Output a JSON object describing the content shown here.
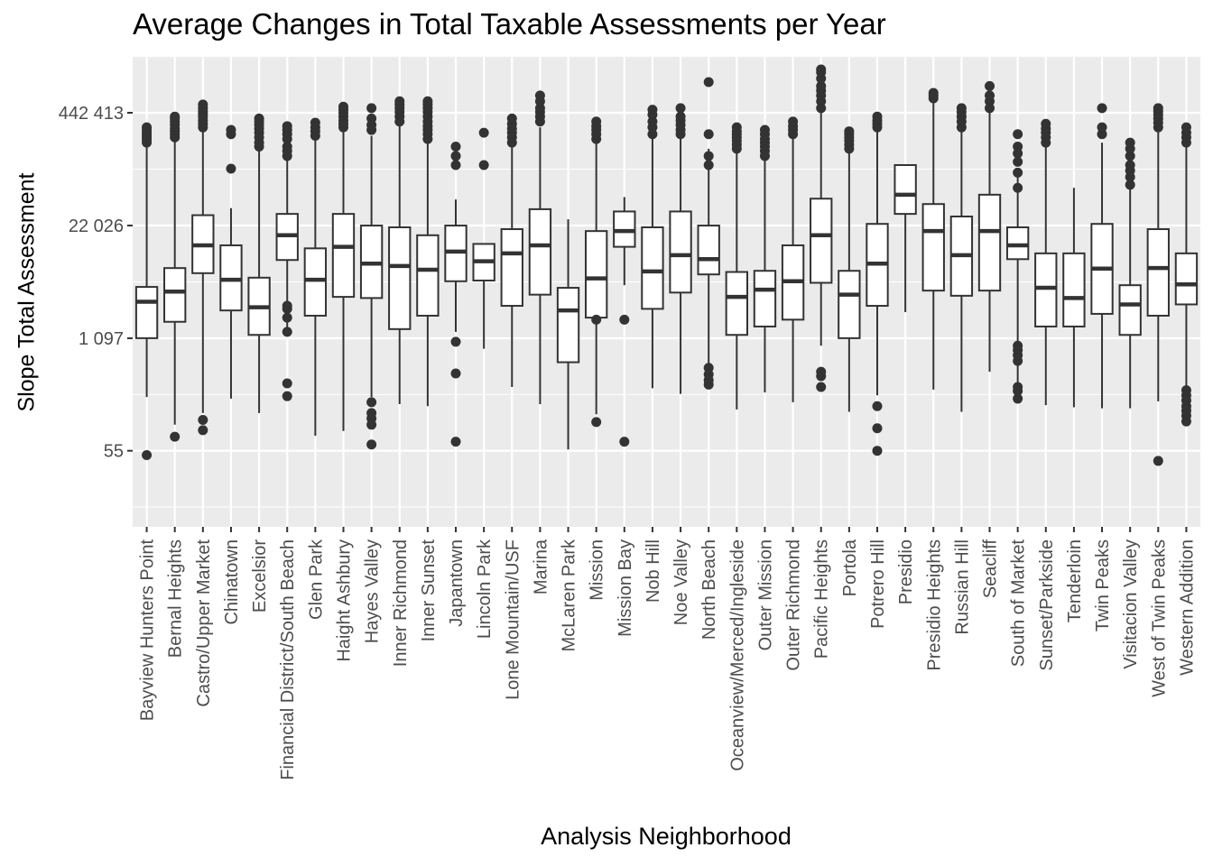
{
  "chart_data": {
    "type": "boxplot",
    "title": "Average Changes in Total Taxable Assessments per Year",
    "xlabel": "Analysis Neighborhood",
    "ylabel": "Slope Total Assessment",
    "y_scale": "log",
    "ylim": [
      2,
      30000000
    ],
    "y_ticks": [
      {
        "value": 55,
        "label": "55"
      },
      {
        "value": 1097,
        "label": "1 097"
      },
      {
        "value": 22026,
        "label": "22 026"
      },
      {
        "value": 442413,
        "label": "442 413"
      }
    ],
    "grid": true,
    "categories": [
      "Bayview Hunters Point",
      "Bernal Heights",
      "Castro/Upper Market",
      "Chinatown",
      "Excelsior",
      "Financial District/South Beach",
      "Glen Park",
      "Haight Ashbury",
      "Hayes Valley",
      "Inner Richmond",
      "Inner Sunset",
      "Japantown",
      "Lincoln Park",
      "Lone Mountain/USF",
      "Marina",
      "McLaren Park",
      "Mission",
      "Mission Bay",
      "Nob Hill",
      "Noe Valley",
      "North Beach",
      "Oceanview/Merced/Ingleside",
      "Outer Mission",
      "Outer Richmond",
      "Pacific Heights",
      "Portola",
      "Potrero Hill",
      "Presidio",
      "Presidio Heights",
      "Russian Hill",
      "Seacliff",
      "South of Market",
      "Sunset/Parkside",
      "Tenderloin",
      "Twin Peaks",
      "Visitacion Valley",
      "West of Twin Peaks",
      "Western Addition"
    ],
    "boxes": [
      {
        "min": 230,
        "q1": 1100,
        "median": 2900,
        "q3": 4300,
        "max": 190000,
        "outliers": [
          49,
          200000,
          215000,
          230000,
          245000,
          260000,
          280000,
          300000
        ]
      },
      {
        "min": 110,
        "q1": 1700,
        "median": 3800,
        "q3": 7100,
        "max": 300000,
        "outliers": [
          80,
          230000,
          250000,
          270000,
          290000,
          320000,
          350000,
          380000,
          400000
        ]
      },
      {
        "min": 150,
        "q1": 6200,
        "median": 13000,
        "q3": 29000,
        "max": 400000,
        "outliers": [
          95,
          125,
          300000,
          330000,
          360000,
          400000,
          430000,
          460000,
          500000,
          550000
        ]
      },
      {
        "min": 220,
        "q1": 2300,
        "median": 5200,
        "q3": 13000,
        "max": 35000,
        "outliers": [
          100000,
          250000,
          280000
        ]
      },
      {
        "min": 150,
        "q1": 1200,
        "median": 2500,
        "q3": 5500,
        "max": 170000,
        "outliers": [
          180000,
          200000,
          230000,
          260000,
          290000,
          320000,
          350000,
          380000
        ]
      },
      {
        "min": 1400,
        "q1": 8800,
        "median": 17000,
        "q3": 30000,
        "max": 280000,
        "outliers": [
          1300,
          1900,
          2400,
          2600,
          330,
          235,
          140000,
          160000,
          180000,
          220000,
          250000,
          280000,
          310000
        ]
      },
      {
        "min": 82,
        "q1": 2000,
        "median": 5200,
        "q3": 12000,
        "max": 300000,
        "outliers": [
          240000,
          270000,
          300000,
          340000
        ]
      },
      {
        "min": 93,
        "q1": 3300,
        "median": 12500,
        "q3": 30000,
        "max": 400000,
        "outliers": [
          300000,
          330000,
          360000,
          400000,
          440000,
          480000,
          520000
        ]
      },
      {
        "min": 230,
        "q1": 3200,
        "median": 8000,
        "q3": 22000,
        "max": 240000,
        "outliers": [
          200,
          150,
          130,
          110,
          65,
          280000,
          320000,
          380000,
          500000
        ]
      },
      {
        "min": 190,
        "q1": 1400,
        "median": 7500,
        "q3": 21000,
        "max": 420000,
        "outliers": [
          350000,
          400000,
          450000,
          500000,
          550000,
          600000
        ]
      },
      {
        "min": 180,
        "q1": 2000,
        "median": 6800,
        "q3": 17000,
        "max": 330000,
        "outliers": [
          220000,
          250000,
          280000,
          310000,
          350000,
          400000,
          450000,
          500000,
          550000,
          600000
        ]
      },
      {
        "min": 1300,
        "q1": 5000,
        "median": 11000,
        "q3": 22000,
        "max": 44000,
        "outliers": [
          1000,
          430,
          70,
          110000,
          140000,
          180000
        ]
      },
      {
        "min": 830,
        "q1": 5100,
        "median": 8500,
        "q3": 13500,
        "max": 13500,
        "outliers": [
          110000,
          260000
        ]
      },
      {
        "min": 300,
        "q1": 2600,
        "median": 10500,
        "q3": 20000,
        "max": 190000,
        "outliers": [
          200000,
          230000,
          260000,
          290000,
          330000,
          380000
        ]
      },
      {
        "min": 190,
        "q1": 3500,
        "median": 13000,
        "q3": 34000,
        "max": 300000,
        "outliers": [
          350000,
          400000,
          450000,
          500000,
          600000,
          700000
        ]
      },
      {
        "min": 57,
        "q1": 580,
        "median": 2300,
        "q3": 4200,
        "max": 26000,
        "outliers": []
      },
      {
        "min": 145,
        "q1": 1900,
        "median": 5400,
        "q3": 19000,
        "max": 300000,
        "outliers": [
          118,
          1800,
          220000,
          250000,
          280000,
          310000,
          350000
        ]
      },
      {
        "min": 4500,
        "q1": 12500,
        "median": 19000,
        "q3": 32000,
        "max": 47000,
        "outliers": [
          1800,
          70
        ]
      },
      {
        "min": 290,
        "q1": 2400,
        "median": 6500,
        "q3": 21000,
        "max": 300000,
        "outliers": [
          250000,
          300000,
          350000,
          420000,
          480000
        ]
      },
      {
        "min": 250,
        "q1": 3700,
        "median": 10000,
        "q3": 32000,
        "max": 300000,
        "outliers": [
          250000,
          280000,
          320000,
          360000,
          400000,
          500000
        ]
      },
      {
        "min": 520,
        "q1": 6000,
        "median": 9000,
        "q3": 22000,
        "max": 170000,
        "outliers": [
          500,
          420,
          360,
          320,
          110000,
          140000,
          250000,
          1000000
        ]
      },
      {
        "min": 165,
        "q1": 1200,
        "median": 3300,
        "q3": 6400,
        "max": 160000,
        "outliers": [
          170000,
          190000,
          210000,
          230000,
          250000,
          270000,
          300000
        ]
      },
      {
        "min": 260,
        "q1": 1500,
        "median": 4000,
        "q3": 6600,
        "max": 180000,
        "outliers": [
          140000,
          160000,
          180000,
          200000,
          220000,
          250000,
          280000
        ]
      },
      {
        "min": 200,
        "q1": 1800,
        "median": 5000,
        "q3": 13000,
        "max": 300000,
        "outliers": [
          250000,
          280000,
          310000,
          350000
        ]
      },
      {
        "min": 900,
        "q1": 4800,
        "median": 17000,
        "q3": 45000,
        "max": 1200000,
        "outliers": [
          300,
          400,
          450,
          500000,
          600000,
          700000,
          800000,
          900000,
          1100000,
          1300000,
          1400000
        ]
      },
      {
        "min": 155,
        "q1": 1100,
        "median": 3500,
        "q3": 6600,
        "max": 180000,
        "outliers": [
          170000,
          190000,
          210000,
          230000,
          250000,
          270000
        ]
      },
      {
        "min": 240,
        "q1": 2600,
        "median": 8000,
        "q3": 23000,
        "max": 350000,
        "outliers": [
          180,
          100,
          55,
          300000,
          330000,
          360000,
          400000
        ]
      },
      {
        "min": 2200,
        "q1": 30000,
        "median": 50000,
        "q3": 110000,
        "max": 110000,
        "outliers": []
      },
      {
        "min": 280,
        "q1": 3900,
        "median": 19000,
        "q3": 39000,
        "max": 600000,
        "outliers": [
          650000,
          700000,
          750000
        ]
      },
      {
        "min": 155,
        "q1": 3400,
        "median": 10000,
        "q3": 28000,
        "max": 400000,
        "outliers": [
          300000,
          350000,
          400000,
          450000,
          500000
        ]
      },
      {
        "min": 450,
        "q1": 3900,
        "median": 19000,
        "q3": 50000,
        "max": 500000,
        "outliers": [
          500000,
          600000,
          700000,
          900000
        ]
      },
      {
        "min": 300,
        "q1": 9000,
        "median": 13000,
        "q3": 21000,
        "max": 80000,
        "outliers": [
          300,
          270,
          220,
          600,
          700,
          800,
          900,
          60000,
          90000,
          120000,
          150000,
          180000,
          250000
        ]
      },
      {
        "min": 185,
        "q1": 1500,
        "median": 4200,
        "q3": 10500,
        "max": 250000,
        "outliers": [
          200000,
          230000,
          260000,
          290000,
          330000
        ]
      },
      {
        "min": 175,
        "q1": 1500,
        "median": 3200,
        "q3": 10500,
        "max": 60000,
        "outliers": []
      },
      {
        "min": 170,
        "q1": 2100,
        "median": 7000,
        "q3": 23000,
        "max": 200000,
        "outliers": [
          250000,
          300000,
          500000
        ]
      },
      {
        "min": 170,
        "q1": 1200,
        "median": 2700,
        "q3": 4500,
        "max": 60000,
        "outliers": [
          65000,
          80000,
          95000,
          110000,
          140000,
          170000,
          200000
        ]
      },
      {
        "min": 205,
        "q1": 2000,
        "median": 7100,
        "q3": 20000,
        "max": 400000,
        "outliers": [
          42,
          300000,
          340000,
          380000,
          420000,
          460000,
          500000
        ]
      },
      {
        "min": 290,
        "q1": 2700,
        "median": 4600,
        "q3": 10500,
        "max": 180000,
        "outliers": [
          275,
          240,
          210,
          180,
          160,
          140,
          120,
          200000,
          230000,
          260000,
          300000
        ]
      }
    ]
  }
}
